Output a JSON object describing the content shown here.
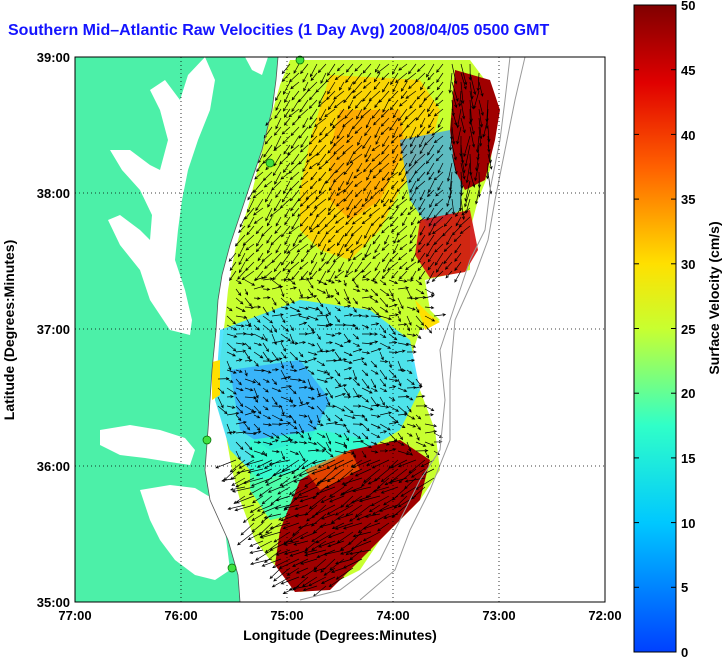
{
  "title": "Southern Mid–Atlantic Raw Velocities (1 Day Avg) 2008/04/05 0500 GMT",
  "map": {
    "xlabel": "Longitude (Degrees:Minutes)",
    "ylabel": "Latitude (Degrees:Minutes)",
    "lon_ticks": [
      "77:00",
      "76:00",
      "75:00",
      "74:00",
      "73:00",
      "72:00"
    ],
    "lat_ticks": [
      "39:00",
      "38:00",
      "37:00",
      "36:00",
      "35:00"
    ],
    "lon_range": [
      -77,
      -72
    ],
    "lat_range": [
      35,
      39
    ],
    "grid": true,
    "land_color": "#4cf0a8",
    "field_type": "HF radar surface current velocity vectors over colored speed field"
  },
  "colorbar": {
    "label": "Surface Velocity (cm/s)",
    "ticks": [
      "50",
      "45",
      "40",
      "35",
      "30",
      "25",
      "20",
      "15",
      "10",
      "5",
      "0"
    ],
    "range": [
      0,
      50
    ],
    "colormap": "jet"
  }
}
